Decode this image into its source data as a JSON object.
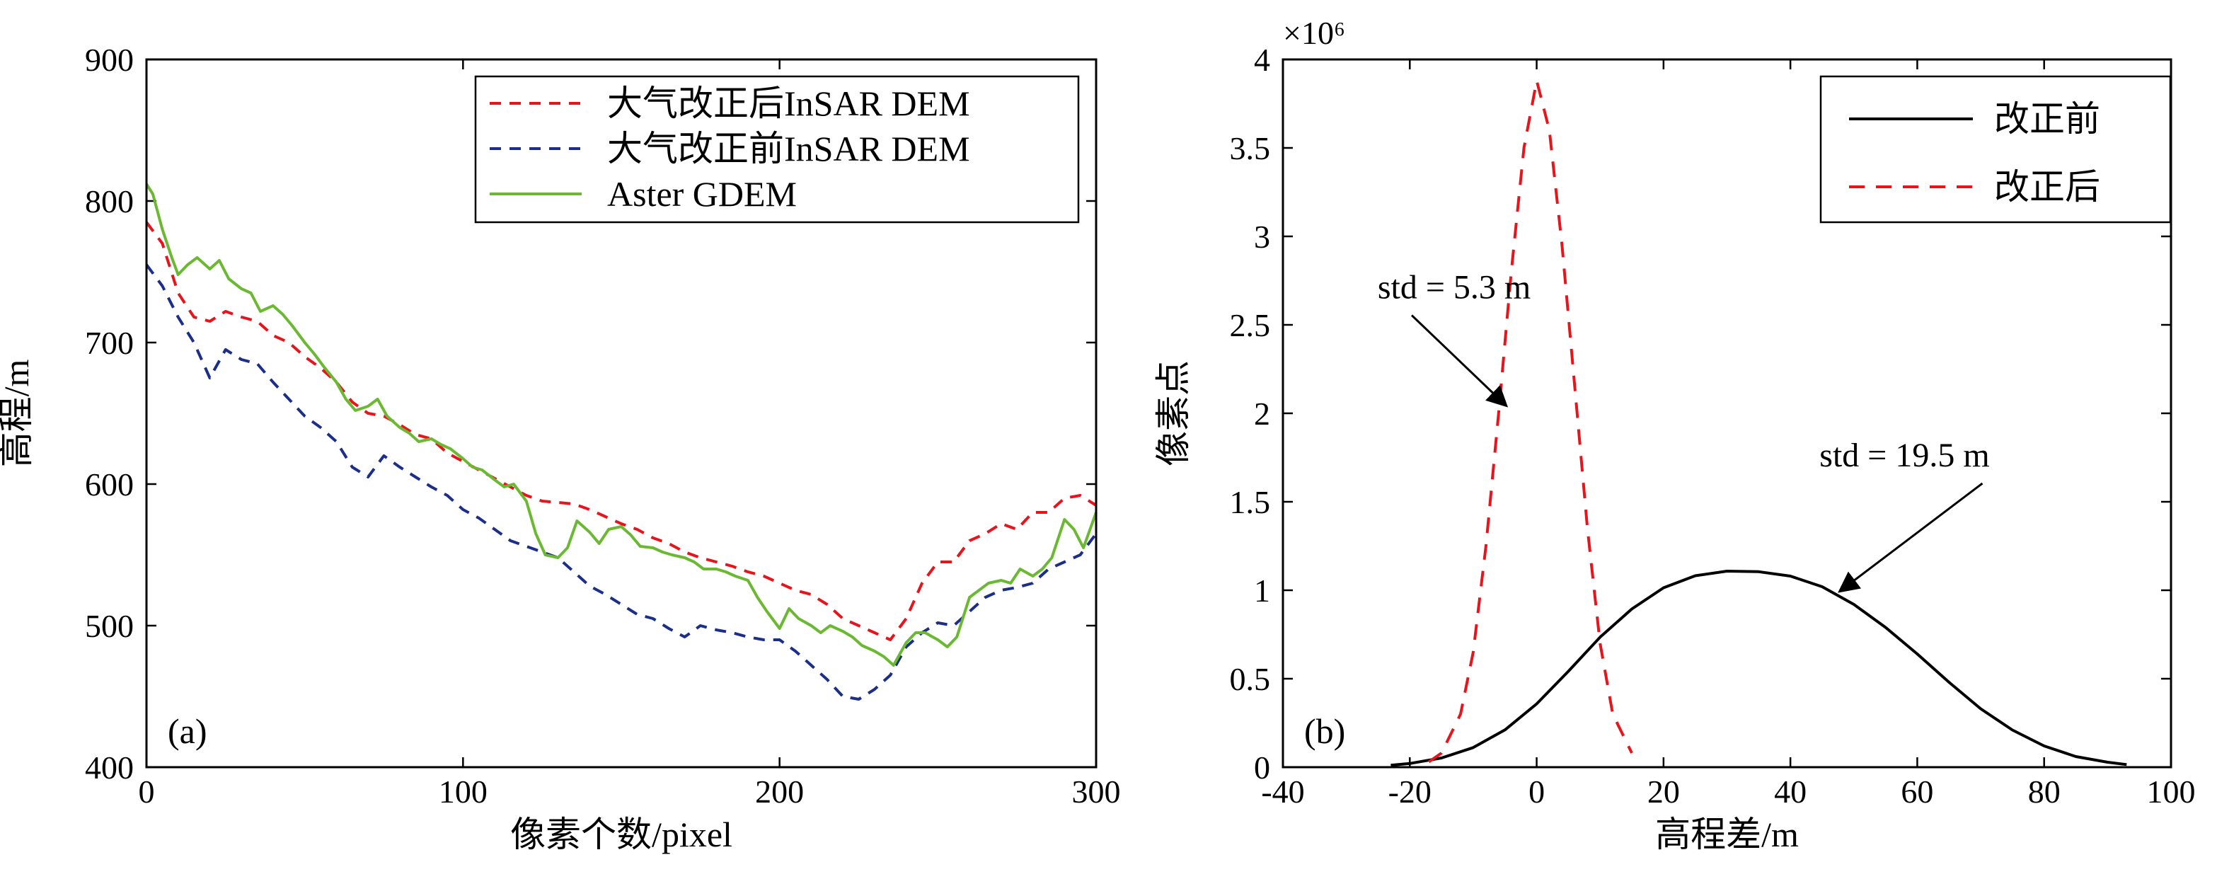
{
  "chart_data": [
    {
      "type": "line",
      "panel_label": "(a)",
      "xlabel": "像素个数/pixel",
      "ylabel": "高程/m",
      "xlim": [
        0,
        300
      ],
      "ylim": [
        400,
        900
      ],
      "xticks": [
        0,
        100,
        200,
        300
      ],
      "yticks": [
        400,
        500,
        600,
        700,
        800,
        900
      ],
      "legend_position": "top-right",
      "series": [
        {
          "name": "大气改正后InSAR DEM",
          "style": "dashed",
          "color": "#e8141c",
          "x": [
            0,
            5,
            10,
            15,
            20,
            25,
            30,
            35,
            40,
            45,
            50,
            55,
            60,
            65,
            70,
            75,
            80,
            85,
            90,
            95,
            100,
            105,
            110,
            115,
            120,
            125,
            130,
            135,
            140,
            145,
            150,
            155,
            160,
            165,
            170,
            175,
            180,
            185,
            190,
            195,
            200,
            205,
            210,
            215,
            220,
            225,
            230,
            235,
            240,
            245,
            250,
            255,
            260,
            265,
            270,
            275,
            280,
            285,
            290,
            295,
            300
          ],
          "y": [
            785,
            770,
            735,
            718,
            715,
            722,
            718,
            715,
            705,
            700,
            690,
            682,
            672,
            658,
            650,
            648,
            642,
            635,
            632,
            622,
            616,
            610,
            604,
            598,
            592,
            588,
            587,
            586,
            582,
            577,
            572,
            568,
            562,
            558,
            552,
            548,
            545,
            542,
            538,
            535,
            530,
            525,
            522,
            515,
            505,
            500,
            495,
            490,
            505,
            530,
            545,
            545,
            560,
            565,
            572,
            568,
            580,
            580,
            590,
            592,
            585
          ]
        },
        {
          "name": "大气改正前InSAR DEM",
          "style": "dashed",
          "color": "#1a2e8a",
          "x": [
            0,
            5,
            10,
            15,
            20,
            25,
            30,
            35,
            40,
            45,
            50,
            55,
            60,
            65,
            70,
            75,
            80,
            85,
            90,
            95,
            100,
            105,
            110,
            115,
            120,
            125,
            130,
            135,
            140,
            145,
            150,
            155,
            160,
            165,
            170,
            175,
            180,
            185,
            190,
            195,
            200,
            205,
            210,
            215,
            220,
            225,
            230,
            235,
            240,
            245,
            250,
            255,
            260,
            265,
            270,
            275,
            280,
            285,
            290,
            295,
            300
          ],
          "y": [
            755,
            740,
            718,
            700,
            675,
            695,
            688,
            685,
            672,
            660,
            648,
            640,
            630,
            612,
            605,
            620,
            612,
            605,
            598,
            592,
            582,
            576,
            568,
            560,
            556,
            552,
            548,
            538,
            528,
            522,
            515,
            508,
            505,
            498,
            492,
            500,
            497,
            495,
            492,
            490,
            490,
            482,
            472,
            462,
            450,
            448,
            455,
            465,
            485,
            495,
            502,
            500,
            510,
            520,
            525,
            527,
            530,
            540,
            545,
            550,
            565
          ]
        },
        {
          "name": "Aster GDEM",
          "style": "solid",
          "color": "#6bb832",
          "x": [
            0,
            2,
            5,
            8,
            10,
            13,
            16,
            20,
            23,
            26,
            30,
            33,
            36,
            40,
            43,
            46,
            50,
            53,
            56,
            60,
            63,
            66,
            70,
            73,
            76,
            80,
            83,
            86,
            90,
            93,
            96,
            100,
            103,
            106,
            110,
            113,
            116,
            120,
            123,
            126,
            130,
            133,
            136,
            140,
            143,
            146,
            150,
            153,
            156,
            160,
            163,
            166,
            170,
            173,
            176,
            180,
            183,
            186,
            190,
            193,
            196,
            200,
            203,
            206,
            210,
            213,
            216,
            220,
            223,
            226,
            230,
            233,
            236,
            240,
            243,
            246,
            250,
            253,
            256,
            260,
            263,
            266,
            270,
            273,
            276,
            280,
            283,
            286,
            290,
            293,
            296,
            300
          ],
          "y": [
            812,
            805,
            780,
            760,
            748,
            755,
            760,
            752,
            758,
            745,
            738,
            735,
            722,
            726,
            720,
            712,
            700,
            692,
            683,
            672,
            660,
            652,
            655,
            660,
            648,
            640,
            636,
            630,
            632,
            628,
            625,
            618,
            612,
            610,
            603,
            598,
            600,
            588,
            565,
            550,
            548,
            555,
            574,
            566,
            558,
            568,
            570,
            564,
            556,
            555,
            552,
            550,
            548,
            545,
            540,
            540,
            538,
            535,
            532,
            520,
            510,
            498,
            512,
            505,
            500,
            495,
            500,
            496,
            492,
            486,
            482,
            478,
            472,
            488,
            495,
            495,
            490,
            485,
            492,
            520,
            525,
            530,
            532,
            530,
            540,
            535,
            540,
            548,
            575,
            568,
            555,
            580
          ]
        }
      ]
    },
    {
      "type": "line",
      "panel_label": "(b)",
      "xlabel": "高程差/m",
      "ylabel": "像素点",
      "xlim": [
        -40,
        100
      ],
      "ylim": [
        0,
        4
      ],
      "y_multiplier": "×10⁶",
      "xticks": [
        -40,
        -20,
        0,
        20,
        40,
        60,
        80,
        100
      ],
      "yticks": [
        0,
        0.5,
        1,
        1.5,
        2,
        2.5,
        3,
        3.5,
        4
      ],
      "legend_position": "top-right",
      "series": [
        {
          "name": "改正前",
          "style": "solid",
          "color": "#000000",
          "x": [
            -23,
            -20,
            -15,
            -10,
            -5,
            0,
            5,
            10,
            15,
            20,
            25,
            30,
            35,
            40,
            45,
            50,
            55,
            60,
            65,
            70,
            75,
            80,
            85,
            90,
            93
          ],
          "y": [
            0.011,
            0.021,
            0.052,
            0.111,
            0.211,
            0.358,
            0.542,
            0.735,
            0.894,
            1.014,
            1.082,
            1.108,
            1.105,
            1.08,
            1.02,
            0.92,
            0.79,
            0.64,
            0.48,
            0.33,
            0.21,
            0.12,
            0.06,
            0.028,
            0.015
          ]
        },
        {
          "name": "改正后",
          "style": "dashed",
          "color": "#e8141c",
          "x": [
            -17,
            -15,
            -12,
            -10,
            -8,
            -6,
            -4,
            -2,
            0,
            2,
            4,
            6,
            8,
            10,
            12,
            15
          ],
          "y": [
            0.03,
            0.08,
            0.3,
            0.65,
            1.25,
            2.0,
            2.8,
            3.5,
            3.88,
            3.6,
            2.95,
            2.15,
            1.35,
            0.7,
            0.3,
            0.08
          ]
        }
      ],
      "annotations": [
        {
          "text": "std = 5.3 m",
          "x": -13,
          "y": 2.65,
          "arrow_to": [
            -5,
            2.05
          ]
        },
        {
          "text": "std = 19.5 m",
          "x": 58,
          "y": 1.7,
          "arrow_to": [
            48,
            1.0
          ]
        }
      ]
    }
  ]
}
